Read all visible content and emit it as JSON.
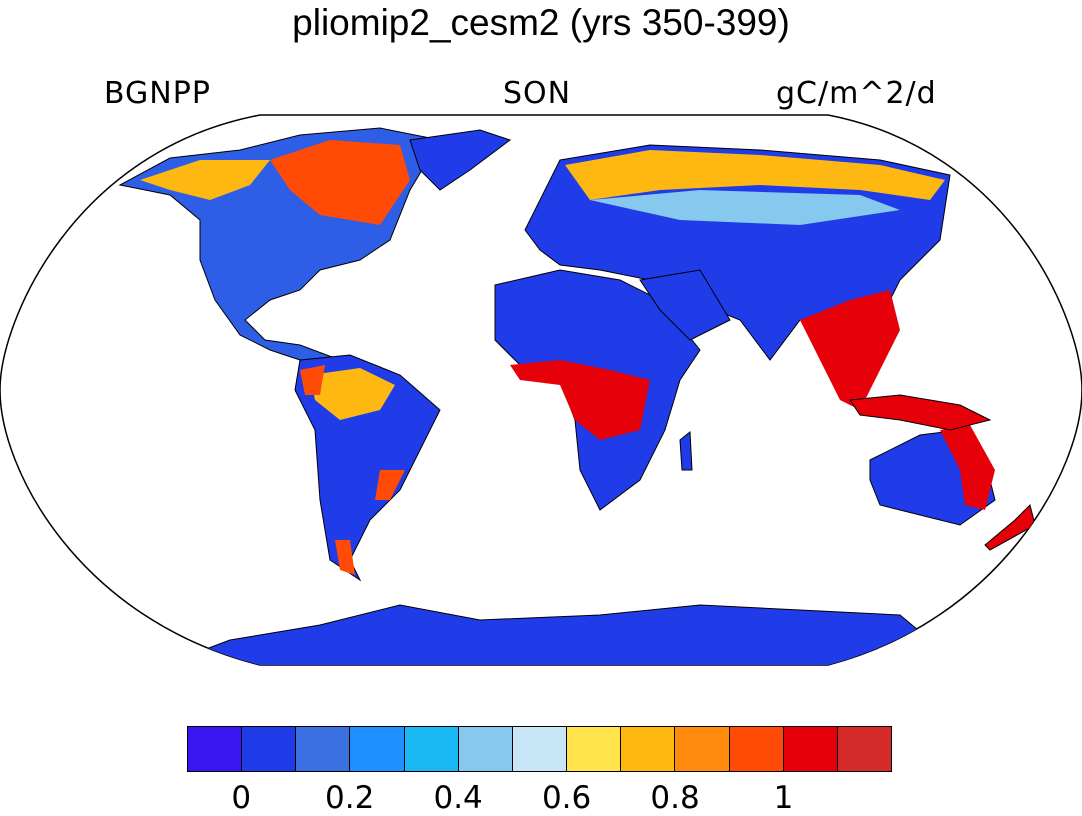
{
  "title": "pliomip2_cesm2 (yrs 350-399)",
  "subtitle_left": "BGNPP",
  "subtitle_center": "SON",
  "subtitle_right": "gC/m^2/d",
  "colorbar": {
    "colors": [
      "#3a17f0",
      "#1f3ce8",
      "#3a70e0",
      "#1e90ff",
      "#19b8f5",
      "#87c8ee",
      "#c8e6f7",
      "#ffe44c",
      "#ffb811",
      "#ff8a0b",
      "#ff4b06",
      "#e60009",
      "#d42a2a"
    ],
    "tick_labels": [
      "0",
      "0.2",
      "0.4",
      "0.6",
      "0.8",
      "1"
    ],
    "tick_values": [
      0,
      0.2,
      0.4,
      0.6,
      0.8,
      1.0
    ],
    "min": -0.1,
    "max": 1.2
  }
}
